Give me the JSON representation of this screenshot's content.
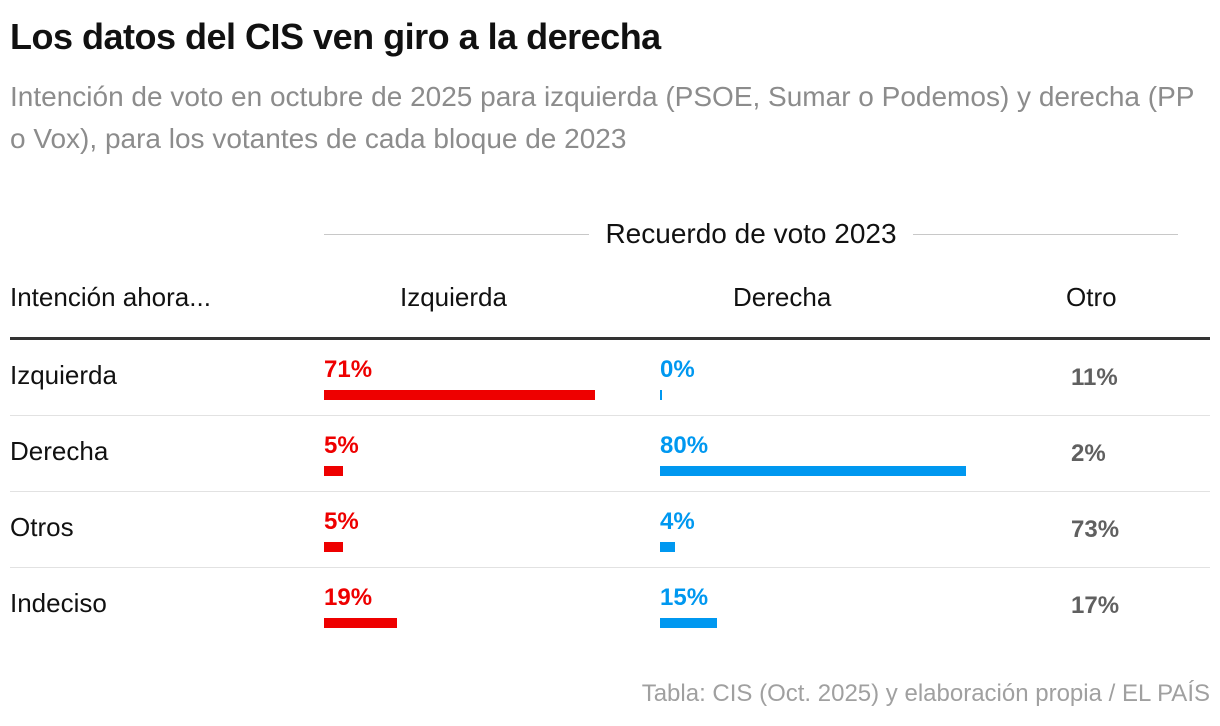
{
  "title": "Los datos del CIS ven giro a la derecha",
  "subtitle": "Intención de voto en octubre de 2025 para izquierda (PSOE, Sumar o Podemos) y derecha (PP o Vox), para los votantes de cada bloque de 2023",
  "source": "Tabla: CIS (Oct. 2025) y elaboración propia / EL PAÍS",
  "colors": {
    "izquierda": "#ee0000",
    "derecha": "#0098f0",
    "otro": "#606060"
  },
  "chart_data": {
    "type": "table",
    "title": "Los datos del CIS ven giro a la derecha",
    "group_label": "Recuerdo de voto 2023",
    "row_header": "Intención ahora...",
    "columns": [
      "Izquierda",
      "Derecha",
      "Otro"
    ],
    "rows": [
      {
        "label": "Izquierda",
        "izquierda": 71,
        "derecha": 0,
        "otro": 11
      },
      {
        "label": "Derecha",
        "izquierda": 5,
        "derecha": 80,
        "otro": 2
      },
      {
        "label": "Otros",
        "izquierda": 5,
        "derecha": 4,
        "otro": 73
      },
      {
        "label": "Indeciso",
        "izquierda": 19,
        "derecha": 15,
        "otro": 17
      }
    ],
    "value_suffix": "%",
    "bar_scale_max": 100
  }
}
